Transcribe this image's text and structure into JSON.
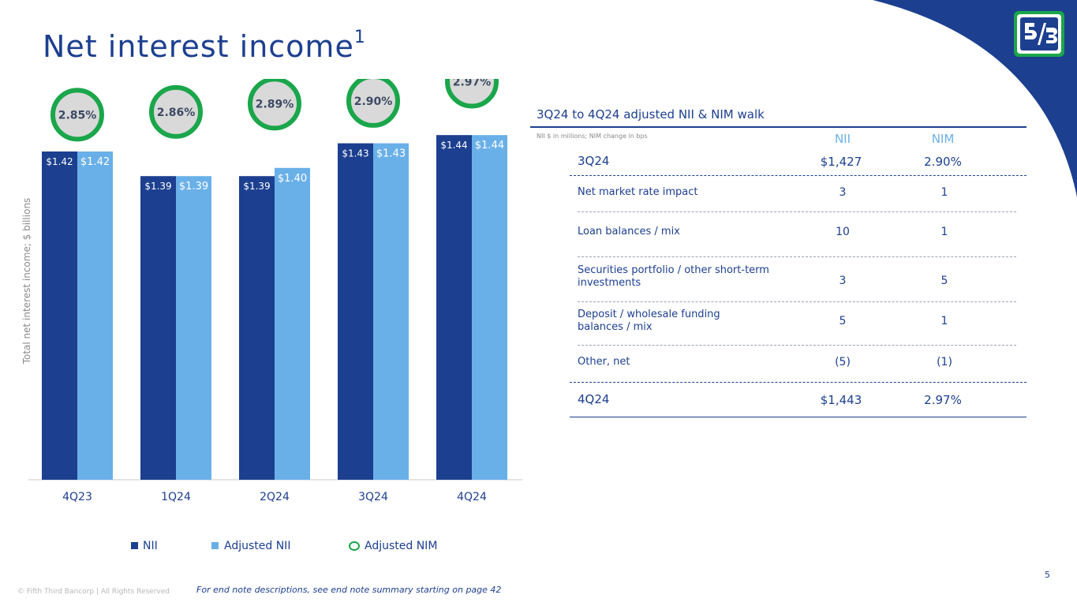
{
  "title": "Net interest income",
  "title_sup": "1",
  "brand": {
    "navy": "#1c3f8f",
    "light_blue": "#6ab0e8",
    "green": "#1aa64b"
  },
  "logo_icon": "fifth-third-logo",
  "chart_data": {
    "type": "bar",
    "categories": [
      "4Q23",
      "1Q24",
      "2Q24",
      "3Q24",
      "4Q24"
    ],
    "series": [
      {
        "name": "NII",
        "values": [
          1.42,
          1.39,
          1.39,
          1.43,
          1.44
        ],
        "labels": [
          "$1.42",
          "$1.39",
          "$1.39",
          "$1.43",
          "$1.44"
        ],
        "color": "#1c3f8f"
      },
      {
        "name": "Adjusted NII",
        "values": [
          1.42,
          1.39,
          1.4,
          1.43,
          1.44
        ],
        "labels": [
          "$1.42",
          "$1.39",
          "$1.40",
          "$1.43",
          "$1.44"
        ],
        "color": "#6ab0e8"
      }
    ],
    "overlay": {
      "name": "Adjusted NIM",
      "values": [
        2.85,
        2.86,
        2.89,
        2.9,
        2.97
      ],
      "labels": [
        "2.85%",
        "2.86%",
        "2.89%",
        "2.90%",
        "2.97%"
      ]
    },
    "ylabel": "Total net interest income; $ billions",
    "legend_position": "bottom",
    "grid": false
  },
  "walk_table": {
    "title": "3Q24 to 4Q24 adjusted NII & NIM walk",
    "note": "NII $ in millions; NIM change in bps",
    "col_nii": "NII",
    "col_nim": "NIM",
    "rows": [
      {
        "label": "3Q24",
        "nii": "$1,427",
        "nim": "2.90%"
      },
      {
        "label": "Net market rate impact",
        "nii": "3",
        "nim": "1"
      },
      {
        "label": "Loan balances / mix",
        "nii": "10",
        "nim": "1"
      },
      {
        "label": "Securities portfolio / other short-term investments",
        "nii": "3",
        "nim": "5"
      },
      {
        "label": "Deposit / wholesale funding balances / mix",
        "nii": "5",
        "nim": "1"
      },
      {
        "label": "Other, net",
        "nii": "(5)",
        "nim": "(1)"
      },
      {
        "label": "4Q24",
        "nii": "$1,443",
        "nim": "2.97%"
      }
    ]
  },
  "footer": {
    "page_number": "5",
    "copyright": "© Fifth Third Bancorp | All Rights Reserved",
    "endnote": "For end note descriptions, see end note summary starting on page 42"
  }
}
